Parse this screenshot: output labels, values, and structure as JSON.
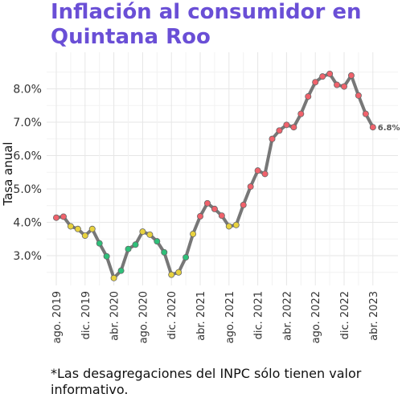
{
  "chart_data": {
    "type": "line",
    "title": "Inflación al consumidor en Quintana Roo",
    "ylabel": "Tasa anual",
    "xlabel": "",
    "ylim": [
      2.1,
      8.7
    ],
    "y_ticks": [
      3.0,
      4.0,
      5.0,
      6.0,
      7.0,
      8.0
    ],
    "y_tick_labels": [
      "3.0%",
      "4.0%",
      "5.0%",
      "6.0%",
      "7.0%",
      "8.0%"
    ],
    "x_tick_labels": [
      "ago. 2019",
      "dic. 2019",
      "abr. 2020",
      "ago. 2020",
      "dic. 2020",
      "abr. 2021",
      "ago. 2021",
      "dic. 2021",
      "abr. 2022",
      "ago. 2022",
      "dic. 2022",
      "abr. 2023"
    ],
    "x_tick_indices": [
      0,
      4,
      8,
      12,
      16,
      20,
      24,
      28,
      32,
      36,
      40,
      44
    ],
    "grid": true,
    "line_color": "#777777",
    "point_colors": {
      "red": "#f0626c",
      "yellow": "#e8d23e",
      "green": "#2fc07a"
    },
    "points": [
      {
        "m": "ago. 2019",
        "v": 4.14,
        "c": "red"
      },
      {
        "m": "sep. 2019",
        "v": 4.17,
        "c": "red"
      },
      {
        "m": "oct. 2019",
        "v": 3.88,
        "c": "yellow"
      },
      {
        "m": "nov. 2019",
        "v": 3.8,
        "c": "yellow"
      },
      {
        "m": "dic. 2019",
        "v": 3.6,
        "c": "yellow"
      },
      {
        "m": "ene. 2020",
        "v": 3.8,
        "c": "yellow"
      },
      {
        "m": "feb. 2020",
        "v": 3.37,
        "c": "green"
      },
      {
        "m": "mar. 2020",
        "v": 2.98,
        "c": "green"
      },
      {
        "m": "abr. 2020",
        "v": 2.33,
        "c": "yellow"
      },
      {
        "m": "may. 2020",
        "v": 2.55,
        "c": "green"
      },
      {
        "m": "jun. 2020",
        "v": 3.2,
        "c": "green"
      },
      {
        "m": "jul. 2020",
        "v": 3.33,
        "c": "green"
      },
      {
        "m": "ago. 2020",
        "v": 3.72,
        "c": "yellow"
      },
      {
        "m": "sep. 2020",
        "v": 3.63,
        "c": "yellow"
      },
      {
        "m": "oct. 2020",
        "v": 3.43,
        "c": "green"
      },
      {
        "m": "nov. 2020",
        "v": 3.1,
        "c": "green"
      },
      {
        "m": "dic. 2020",
        "v": 2.43,
        "c": "yellow"
      },
      {
        "m": "ene. 2021",
        "v": 2.5,
        "c": "yellow"
      },
      {
        "m": "feb. 2021",
        "v": 2.95,
        "c": "green"
      },
      {
        "m": "mar. 2021",
        "v": 3.65,
        "c": "yellow"
      },
      {
        "m": "abr. 2021",
        "v": 4.18,
        "c": "red"
      },
      {
        "m": "may. 2021",
        "v": 4.57,
        "c": "red"
      },
      {
        "m": "jun. 2021",
        "v": 4.4,
        "c": "red"
      },
      {
        "m": "jul. 2021",
        "v": 4.2,
        "c": "red"
      },
      {
        "m": "ago. 2021",
        "v": 3.88,
        "c": "yellow"
      },
      {
        "m": "sep. 2021",
        "v": 3.92,
        "c": "yellow"
      },
      {
        "m": "oct. 2021",
        "v": 4.52,
        "c": "red"
      },
      {
        "m": "nov. 2021",
        "v": 5.07,
        "c": "red"
      },
      {
        "m": "dic. 2021",
        "v": 5.55,
        "c": "red"
      },
      {
        "m": "ene. 2022",
        "v": 5.45,
        "c": "red"
      },
      {
        "m": "feb. 2022",
        "v": 6.5,
        "c": "red"
      },
      {
        "m": "mar. 2022",
        "v": 6.75,
        "c": "red"
      },
      {
        "m": "abr. 2022",
        "v": 6.92,
        "c": "red"
      },
      {
        "m": "may. 2022",
        "v": 6.85,
        "c": "red"
      },
      {
        "m": "jun. 2022",
        "v": 7.25,
        "c": "red"
      },
      {
        "m": "jul. 2022",
        "v": 7.77,
        "c": "red"
      },
      {
        "m": "ago. 2022",
        "v": 8.2,
        "c": "red"
      },
      {
        "m": "sep. 2022",
        "v": 8.37,
        "c": "red"
      },
      {
        "m": "oct. 2022",
        "v": 8.45,
        "c": "red"
      },
      {
        "m": "nov. 2022",
        "v": 8.12,
        "c": "red"
      },
      {
        "m": "dic. 2022",
        "v": 8.07,
        "c": "red"
      },
      {
        "m": "ene. 2023",
        "v": 8.4,
        "c": "red"
      },
      {
        "m": "feb. 2023",
        "v": 7.8,
        "c": "red"
      },
      {
        "m": "mar. 2023",
        "v": 7.25,
        "c": "red"
      },
      {
        "m": "abr. 2023",
        "v": 6.85,
        "c": "red"
      }
    ],
    "last_value_label": "6.8%"
  },
  "footnote": "*Las desagregaciones del INPC sólo tienen valor informativo."
}
